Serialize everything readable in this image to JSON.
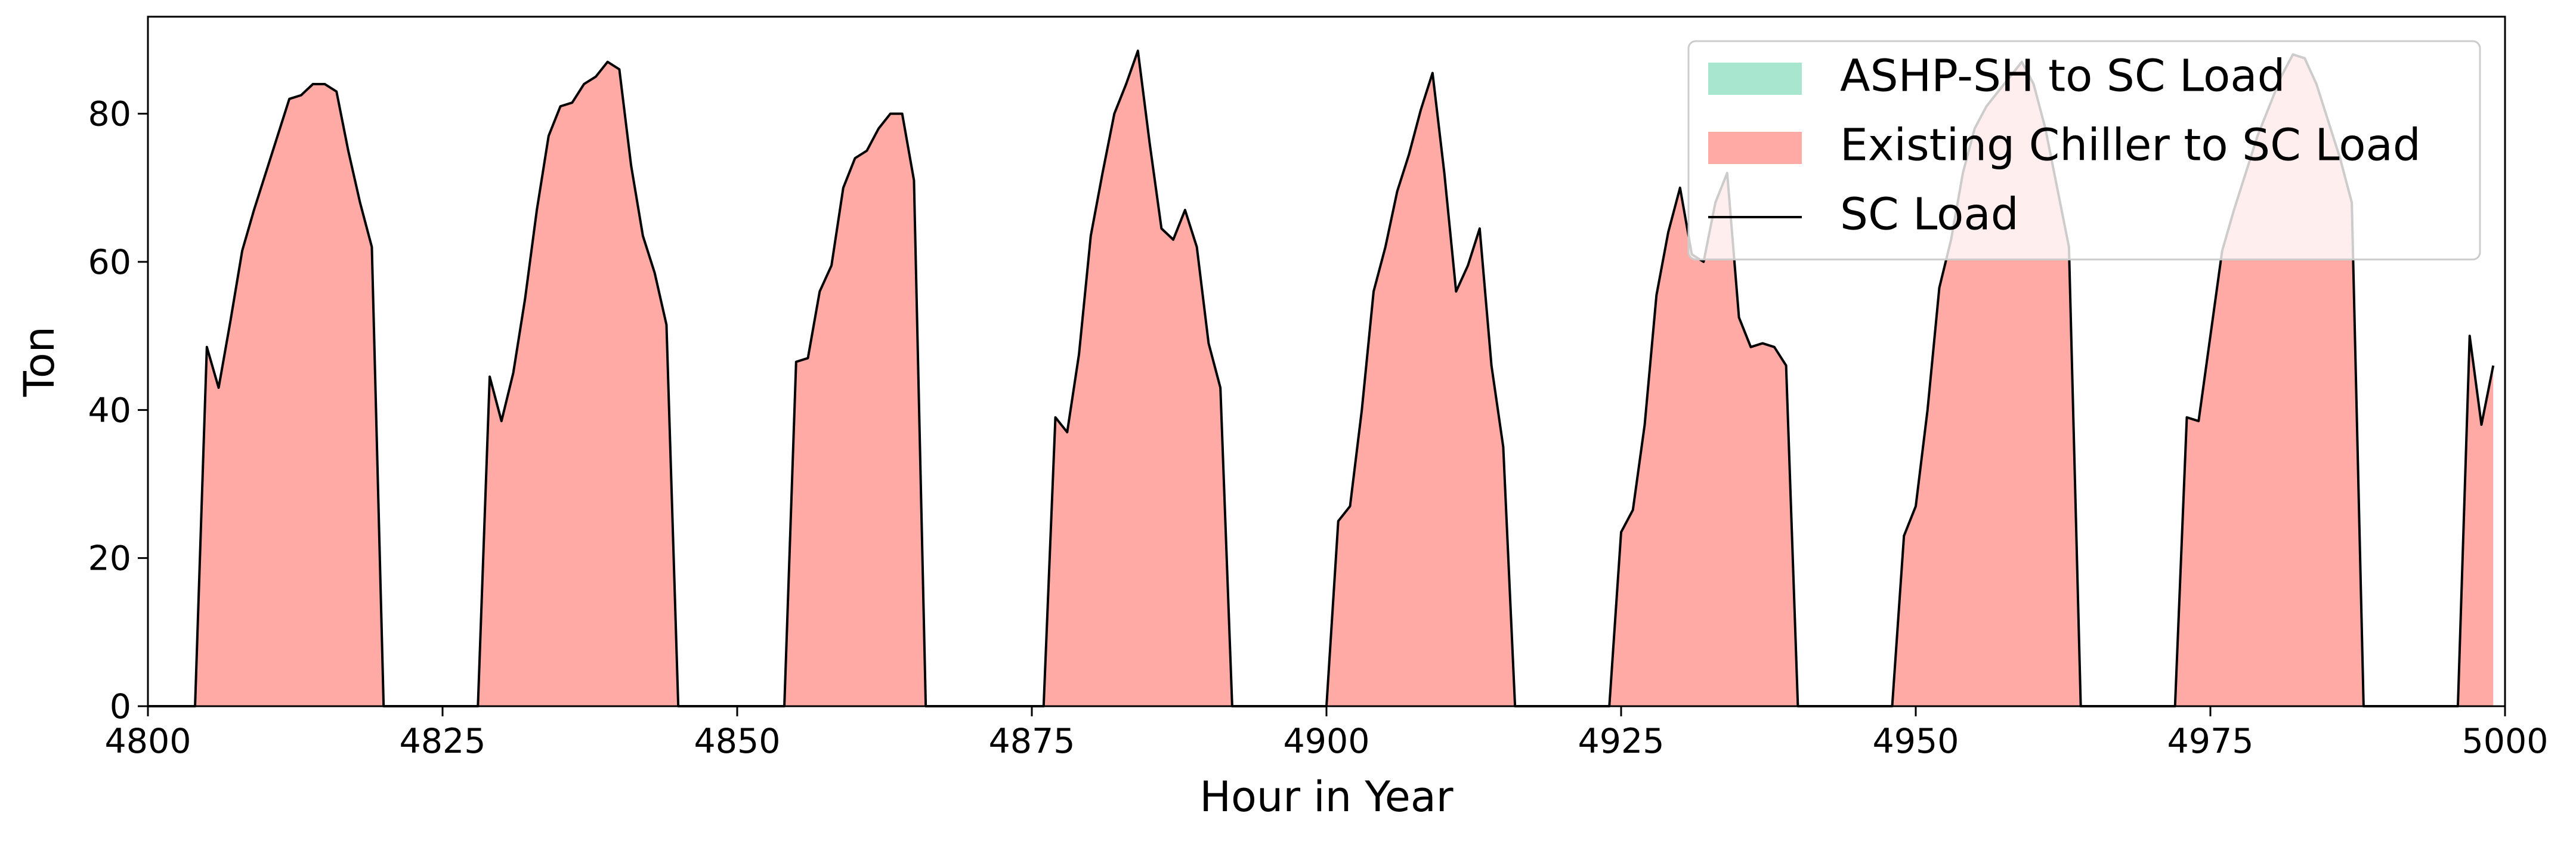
{
  "chart_data": {
    "type": "area",
    "stacked": true,
    "x_label": "Hour in Year",
    "y_label": "Ton",
    "xlim": [
      4800,
      5000
    ],
    "xticks": [
      4800,
      4825,
      4850,
      4875,
      4900,
      4925,
      4950,
      4975,
      5000
    ],
    "ylim": [
      0,
      93.1
    ],
    "yticks": [
      0,
      20,
      40,
      60,
      80
    ],
    "legend": "upper right",
    "x": [
      4800,
      4801,
      4802,
      4803,
      4804,
      4805,
      4806,
      4807,
      4808,
      4809,
      4810,
      4811,
      4812,
      4813,
      4814,
      4815,
      4816,
      4817,
      4818,
      4819,
      4820,
      4821,
      4822,
      4823,
      4824,
      4825,
      4826,
      4827,
      4828,
      4829,
      4830,
      4831,
      4832,
      4833,
      4834,
      4835,
      4836,
      4837,
      4838,
      4839,
      4840,
      4841,
      4842,
      4843,
      4844,
      4845,
      4846,
      4847,
      4848,
      4849,
      4850,
      4851,
      4852,
      4853,
      4854,
      4855,
      4856,
      4857,
      4858,
      4859,
      4860,
      4861,
      4862,
      4863,
      4864,
      4865,
      4866,
      4867,
      4868,
      4869,
      4870,
      4871,
      4872,
      4873,
      4874,
      4875,
      4876,
      4877,
      4878,
      4879,
      4880,
      4881,
      4882,
      4883,
      4884,
      4885,
      4886,
      4887,
      4888,
      4889,
      4890,
      4891,
      4892,
      4893,
      4894,
      4895,
      4896,
      4897,
      4898,
      4899,
      4900,
      4901,
      4902,
      4903,
      4904,
      4905,
      4906,
      4907,
      4908,
      4909,
      4910,
      4911,
      4912,
      4913,
      4914,
      4915,
      4916,
      4917,
      4918,
      4919,
      4920,
      4921,
      4922,
      4923,
      4924,
      4925,
      4926,
      4927,
      4928,
      4929,
      4930,
      4931,
      4932,
      4933,
      4934,
      4935,
      4936,
      4937,
      4938,
      4939,
      4940,
      4941,
      4942,
      4943,
      4944,
      4945,
      4946,
      4947,
      4948,
      4949,
      4950,
      4951,
      4952,
      4953,
      4954,
      4955,
      4956,
      4957,
      4958,
      4959,
      4960,
      4961,
      4962,
      4963,
      4964,
      4965,
      4966,
      4967,
      4968,
      4969,
      4970,
      4971,
      4972,
      4973,
      4974,
      4975,
      4976,
      4977,
      4978,
      4979,
      4980,
      4981,
      4982,
      4983,
      4984,
      4985,
      4986,
      4987,
      4988,
      4989,
      4990,
      4991,
      4992,
      4993,
      4994,
      4995,
      4996,
      4997,
      4998,
      4999
    ],
    "series": [
      {
        "name": "ASHP-SH to SC Load",
        "style": "area",
        "color": "#a8e6cf",
        "values": [
          0,
          0,
          0,
          0,
          0,
          0,
          0,
          0,
          0,
          0,
          0,
          0,
          0,
          0,
          0,
          0,
          0,
          0,
          0,
          0,
          0,
          0,
          0,
          0,
          0,
          0,
          0,
          0,
          0,
          0,
          0,
          0,
          0,
          0,
          0,
          0,
          0,
          0,
          0,
          0,
          0,
          0,
          0,
          0,
          0,
          0,
          0,
          0,
          0,
          0,
          0,
          0,
          0,
          0,
          0,
          0,
          0,
          0,
          0,
          0,
          0,
          0,
          0,
          0,
          0,
          0,
          0,
          0,
          0,
          0,
          0,
          0,
          0,
          0,
          0,
          0,
          0,
          0,
          0,
          0,
          0,
          0,
          0,
          0,
          0,
          0,
          0,
          0,
          0,
          0,
          0,
          0,
          0,
          0,
          0,
          0,
          0,
          0,
          0,
          0,
          0,
          0,
          0,
          0,
          0,
          0,
          0,
          0,
          0,
          0,
          0,
          0,
          0,
          0,
          0,
          0,
          0,
          0,
          0,
          0,
          0,
          0,
          0,
          0,
          0,
          0,
          0,
          0,
          0,
          0,
          0,
          0,
          0,
          0,
          0,
          0,
          0,
          0,
          0,
          0,
          0,
          0,
          0,
          0,
          0,
          0,
          0,
          0,
          0,
          0,
          0,
          0,
          0,
          0,
          0,
          0,
          0,
          0,
          0,
          0,
          0,
          0,
          0,
          0,
          0,
          0,
          0,
          0,
          0,
          0,
          0,
          0,
          0,
          0,
          0,
          0,
          0,
          0,
          0,
          0,
          0,
          0,
          0,
          0,
          0,
          0,
          0,
          0,
          0,
          0,
          0,
          0,
          0,
          0,
          0,
          0,
          0,
          0,
          0,
          0
        ]
      },
      {
        "name": "Existing Chiller to SC Load",
        "style": "area",
        "color": "#ffaaa5",
        "values": [
          0,
          0,
          0,
          0,
          0,
          48.5,
          43,
          52,
          61.5,
          67,
          72,
          77,
          82,
          82.5,
          84,
          84,
          83,
          75,
          68,
          62,
          0,
          0,
          0,
          0,
          0,
          0,
          0,
          0,
          0,
          44.5,
          38.5,
          45,
          55,
          67,
          77,
          81,
          81.5,
          84,
          85,
          87,
          86,
          73,
          63.5,
          58.5,
          51.5,
          0,
          0,
          0,
          0,
          0,
          0,
          0,
          0,
          0,
          0,
          46.5,
          47,
          56,
          59.5,
          70,
          74,
          75,
          78,
          80,
          80,
          71,
          0,
          0,
          0,
          0,
          0,
          0,
          0,
          0,
          0,
          0,
          0,
          39,
          37,
          47.5,
          63.5,
          72,
          80,
          84,
          88.5,
          76,
          64.5,
          63,
          67,
          62,
          49,
          43,
          0,
          0,
          0,
          0,
          0,
          0,
          0,
          0,
          0,
          25,
          27,
          40,
          56,
          62,
          69.5,
          74.5,
          80.5,
          85.5,
          72,
          56,
          59.5,
          64.5,
          46,
          35,
          0,
          0,
          0,
          0,
          0,
          0,
          0,
          0,
          0,
          23.5,
          26.5,
          38,
          55.5,
          64,
          70,
          61,
          60,
          68,
          72,
          52.5,
          48.5,
          49,
          48.5,
          46,
          0,
          0,
          0,
          0,
          0,
          0,
          0,
          0,
          0,
          23,
          27,
          40,
          56.5,
          63,
          72,
          78,
          81,
          83,
          85,
          87,
          84,
          78,
          70,
          62,
          0,
          0,
          0,
          0,
          0,
          0,
          0,
          0,
          0,
          39,
          38.5,
          50,
          61.5,
          67,
          72,
          77,
          81,
          85,
          88,
          87.5,
          84,
          79,
          74,
          68,
          0,
          0,
          0,
          0,
          0,
          0,
          0,
          0,
          0,
          50,
          38,
          46
        ]
      },
      {
        "name": "SC Load",
        "style": "line",
        "color": "#000000",
        "values": [
          0,
          0,
          0,
          0,
          0,
          48.5,
          43,
          52,
          61.5,
          67,
          72,
          77,
          82,
          82.5,
          84,
          84,
          83,
          75,
          68,
          62,
          0,
          0,
          0,
          0,
          0,
          0,
          0,
          0,
          0,
          44.5,
          38.5,
          45,
          55,
          67,
          77,
          81,
          81.5,
          84,
          85,
          87,
          86,
          73,
          63.5,
          58.5,
          51.5,
          0,
          0,
          0,
          0,
          0,
          0,
          0,
          0,
          0,
          0,
          46.5,
          47,
          56,
          59.5,
          70,
          74,
          75,
          78,
          80,
          80,
          71,
          0,
          0,
          0,
          0,
          0,
          0,
          0,
          0,
          0,
          0,
          0,
          39,
          37,
          47.5,
          63.5,
          72,
          80,
          84,
          88.5,
          76,
          64.5,
          63,
          67,
          62,
          49,
          43,
          0,
          0,
          0,
          0,
          0,
          0,
          0,
          0,
          0,
          25,
          27,
          40,
          56,
          62,
          69.5,
          74.5,
          80.5,
          85.5,
          72,
          56,
          59.5,
          64.5,
          46,
          35,
          0,
          0,
          0,
          0,
          0,
          0,
          0,
          0,
          0,
          23.5,
          26.5,
          38,
          55.5,
          64,
          70,
          61,
          60,
          68,
          72,
          52.5,
          48.5,
          49,
          48.5,
          46,
          0,
          0,
          0,
          0,
          0,
          0,
          0,
          0,
          0,
          23,
          27,
          40,
          56.5,
          63,
          72,
          78,
          81,
          83,
          85,
          87,
          84,
          78,
          70,
          62,
          0,
          0,
          0,
          0,
          0,
          0,
          0,
          0,
          0,
          39,
          38.5,
          50,
          61.5,
          67,
          72,
          77,
          81,
          85,
          88,
          87.5,
          84,
          79,
          74,
          68,
          0,
          0,
          0,
          0,
          0,
          0,
          0,
          0,
          0,
          50,
          38,
          46
        ]
      }
    ]
  }
}
